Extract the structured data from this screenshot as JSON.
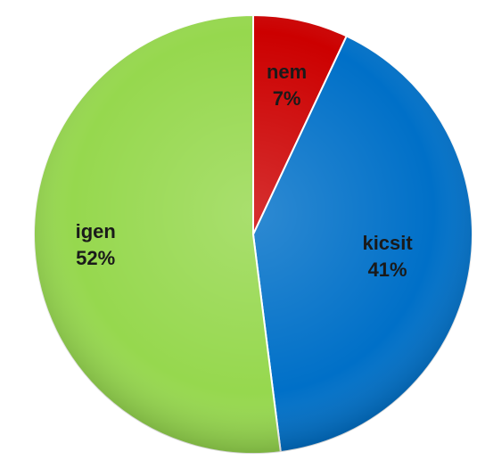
{
  "chart_data": {
    "type": "pie",
    "title": "",
    "start_angle_deg": 0,
    "direction": "clockwise",
    "slices": [
      {
        "label": "nem",
        "value": 7,
        "percent_label": "7%",
        "color": "#cc0000"
      },
      {
        "label": "kicsit",
        "value": 41,
        "percent_label": "41%",
        "color": "#0070c8"
      },
      {
        "label": "igen",
        "value": 52,
        "percent_label": "52%",
        "color": "#96d84e"
      }
    ],
    "legend": "none"
  }
}
